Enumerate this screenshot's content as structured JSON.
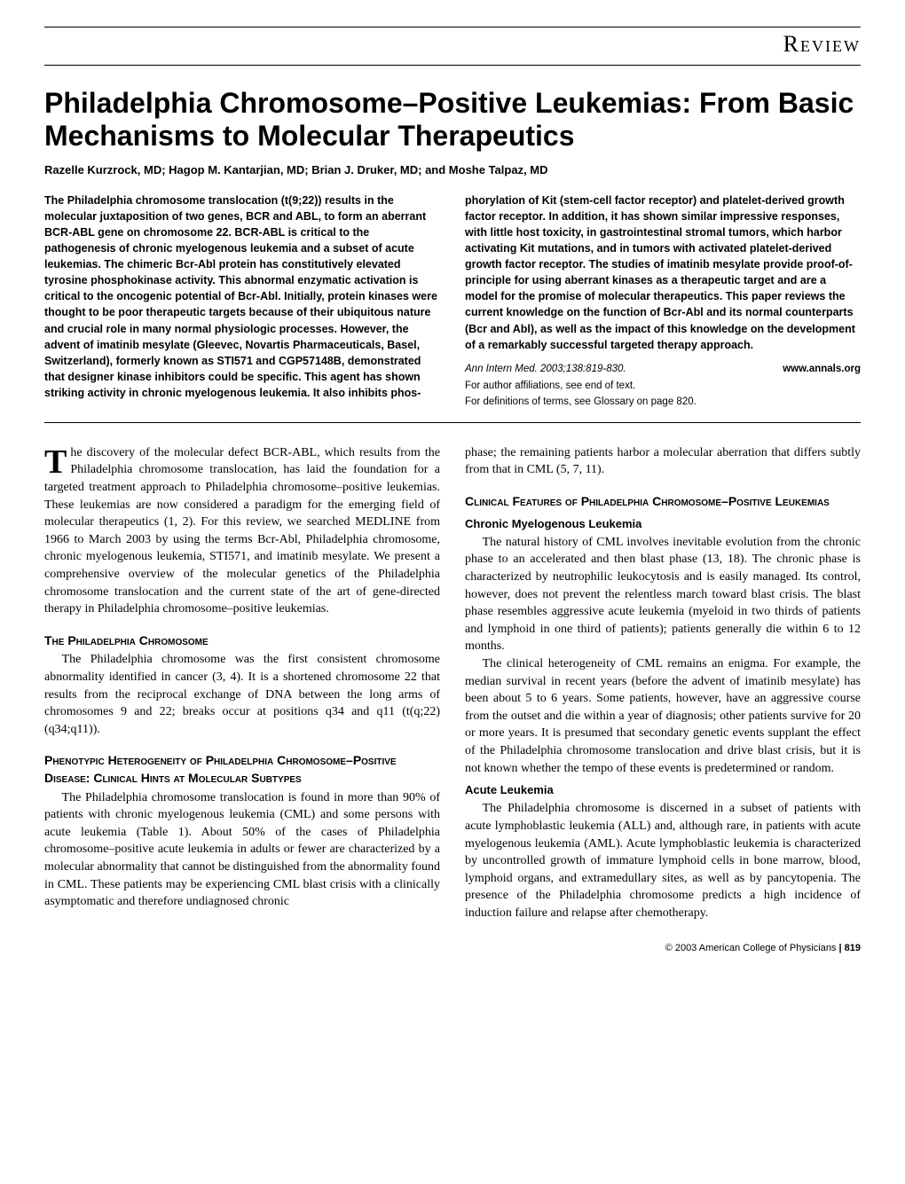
{
  "header": {
    "section_label": "Review"
  },
  "title": "Philadelphia Chromosome–Positive Leukemias: From Basic Mechanisms to Molecular Therapeutics",
  "authors": "Razelle Kurzrock, MD; Hagop M. Kantarjian, MD; Brian J. Druker, MD; and Moshe Talpaz, MD",
  "abstract": {
    "left": "The Philadelphia chromosome translocation (t(9;22)) results in the molecular juxtaposition of two genes, BCR and ABL, to form an aberrant BCR-ABL gene on chromosome 22. BCR-ABL is critical to the pathogenesis of chronic myelogenous leukemia and a subset of acute leukemias. The chimeric Bcr-Abl protein has constitutively elevated tyrosine phosphokinase activity. This abnormal enzymatic activation is critical to the oncogenic potential of Bcr-Abl. Initially, protein kinases were thought to be poor therapeutic targets because of their ubiquitous nature and crucial role in many normal physiologic processes. However, the advent of imatinib mesylate (Gleevec, Novartis Pharmaceuticals, Basel, Switzerland), formerly known as STI571 and CGP57148B, demonstrated that designer kinase inhibitors could be specific. This agent has shown striking activity in chronic myelogenous leukemia. It also inhibits phos-",
    "right": "phorylation of Kit (stem-cell factor receptor) and platelet-derived growth factor receptor. In addition, it has shown similar impressive responses, with little host toxicity, in gastrointestinal stromal tumors, which harbor activating Kit mutations, and in tumors with activated platelet-derived growth factor receptor. The studies of imatinib mesylate provide proof-of-principle for using aberrant kinases as a therapeutic target and are a model for the promise of molecular therapeutics. This paper reviews the current knowledge on the function of Bcr-Abl and its normal counterparts (Bcr and Abl), as well as the impact of this knowledge on the development of a remarkably successful targeted therapy approach.",
    "citation": "Ann Intern Med. 2003;138:819-830.",
    "site": "www.annals.org",
    "affil": "For author affiliations, see end of text.",
    "glossary": "For definitions of terms, see Glossary on page 820."
  },
  "body": {
    "intro_first": "he discovery of the molecular defect BCR-ABL, which results from the Philadelphia chromosome translocation, has laid the foundation for a targeted treatment approach to Philadelphia chromosome–positive leukemias. These leukemias are now considered a paradigm for the emerging field of molecular therapeutics (1, 2). For this review, we searched MEDLINE from 1966 to March 2003 by using the terms Bcr-Abl, Philadelphia chromosome, chronic myelogenous leukemia, STI571, and imatinib mesylate. We present a comprehensive overview of the molecular genetics of the Philadelphia chromosome translocation and the current state of the art of gene-directed therapy in Philadelphia chromosome–positive leukemias.",
    "sec_phil_head": "The Philadelphia Chromosome",
    "sec_phil": "The Philadelphia chromosome was the first consistent chromosome abnormality identified in cancer (3, 4). It is a shortened chromosome 22 that results from the reciprocal exchange of DNA between the long arms of chromosomes 9 and 22; breaks occur at positions q34 and q11 (t(q;22)(q34;q11)).",
    "sec_pheno_head": "Phenotypic Heterogeneity of Philadelphia Chromosome–Positive Disease: Clinical Hints at Molecular Subtypes",
    "sec_pheno": "The Philadelphia chromosome translocation is found in more than 90% of patients with chronic myelogenous leukemia (CML) and some persons with acute leukemia (Table 1). About 50% of the cases of Philadelphia chromosome–positive acute leukemia in adults or fewer are characterized by a molecular abnormality that cannot be distinguished from the abnormality found in CML. These patients may be experiencing CML blast crisis with a clinically asymptomatic and therefore undiagnosed chronic",
    "sec_pheno_cont": "phase; the remaining patients harbor a molecular aberration that differs subtly from that in CML (5, 7, 11).",
    "sec_clin_head": "Clinical Features of Philadelphia Chromosome–Positive Leukemias",
    "sub_cml_head": "Chronic Myelogenous Leukemia",
    "sub_cml_p1": "The natural history of CML involves inevitable evolution from the chronic phase to an accelerated and then blast phase (13, 18). The chronic phase is characterized by neutrophilic leukocytosis and is easily managed. Its control, however, does not prevent the relentless march toward blast crisis. The blast phase resembles aggressive acute leukemia (myeloid in two thirds of patients and lymphoid in one third of patients); patients generally die within 6 to 12 months.",
    "sub_cml_p2": "The clinical heterogeneity of CML remains an enigma. For example, the median survival in recent years (before the advent of imatinib mesylate) has been about 5 to 6 years. Some patients, however, have an aggressive course from the outset and die within a year of diagnosis; other patients survive for 20 or more years. It is presumed that secondary genetic events supplant the effect of the Philadelphia chromosome translocation and drive blast crisis, but it is not known whether the tempo of these events is predetermined or random.",
    "sub_acute_head": "Acute Leukemia",
    "sub_acute": "The Philadelphia chromosome is discerned in a subset of patients with acute lymphoblastic leukemia (ALL) and, although rare, in patients with acute myelogenous leukemia (AML). Acute lymphoblastic leukemia is characterized by uncontrolled growth of immature lymphoid cells in bone marrow, blood, lymphoid organs, and extramedullary sites, as well as by pancytopenia. The presence of the Philadelphia chromosome predicts a high incidence of induction failure and relapse after chemotherapy."
  },
  "footer": {
    "copyright": "© 2003 American College of Physicians",
    "page": "819"
  },
  "style": {
    "text_color": "#000000",
    "background_color": "#ffffff",
    "rule_color": "#000000",
    "title_fontsize": 32,
    "body_fontsize": 14,
    "abstract_fontsize": 12.5
  }
}
